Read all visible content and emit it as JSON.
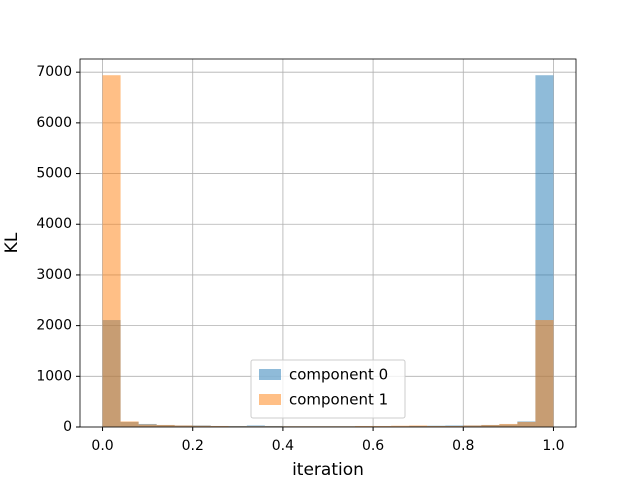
{
  "chart_data": {
    "type": "histogram",
    "x_label": "iteration",
    "y_label": "KL",
    "bins": [
      0,
      0.04,
      0.08,
      0.12,
      0.16,
      0.2,
      0.24,
      0.28,
      0.32,
      0.36,
      0.4,
      0.44,
      0.48,
      0.52,
      0.56,
      0.6,
      0.64,
      0.68,
      0.72,
      0.76,
      0.8,
      0.84,
      0.88,
      0.92,
      0.96,
      1.0
    ],
    "series": [
      {
        "name": "component 0",
        "color": "#1f77b4",
        "values": [
          2110,
          100,
          60,
          40,
          30,
          30,
          20,
          20,
          30,
          20,
          15,
          15,
          15,
          15,
          15,
          15,
          15,
          20,
          25,
          30,
          30,
          40,
          50,
          110,
          6940
        ]
      },
      {
        "name": "component 1",
        "color": "#ff7f0e",
        "values": [
          6940,
          110,
          50,
          40,
          30,
          25,
          20,
          15,
          15,
          15,
          15,
          15,
          15,
          15,
          20,
          20,
          25,
          30,
          20,
          20,
          30,
          40,
          60,
          100,
          2110
        ]
      }
    ],
    "opacity": 0.5,
    "xlim": [
      -0.05,
      1.05
    ],
    "ylim": [
      0,
      7260
    ],
    "xticks": [
      {
        "value": 0,
        "label": "0.0"
      },
      {
        "value": 0.2,
        "label": "0.2"
      },
      {
        "value": 0.4,
        "label": "0.4"
      },
      {
        "value": 0.6,
        "label": "0.6"
      },
      {
        "value": 0.8,
        "label": "0.8"
      },
      {
        "value": 1.0,
        "label": "1.0"
      }
    ],
    "yticks": [
      0,
      1000,
      2000,
      3000,
      4000,
      5000,
      6000,
      7000
    ],
    "grid": true,
    "legend": "lower center"
  }
}
